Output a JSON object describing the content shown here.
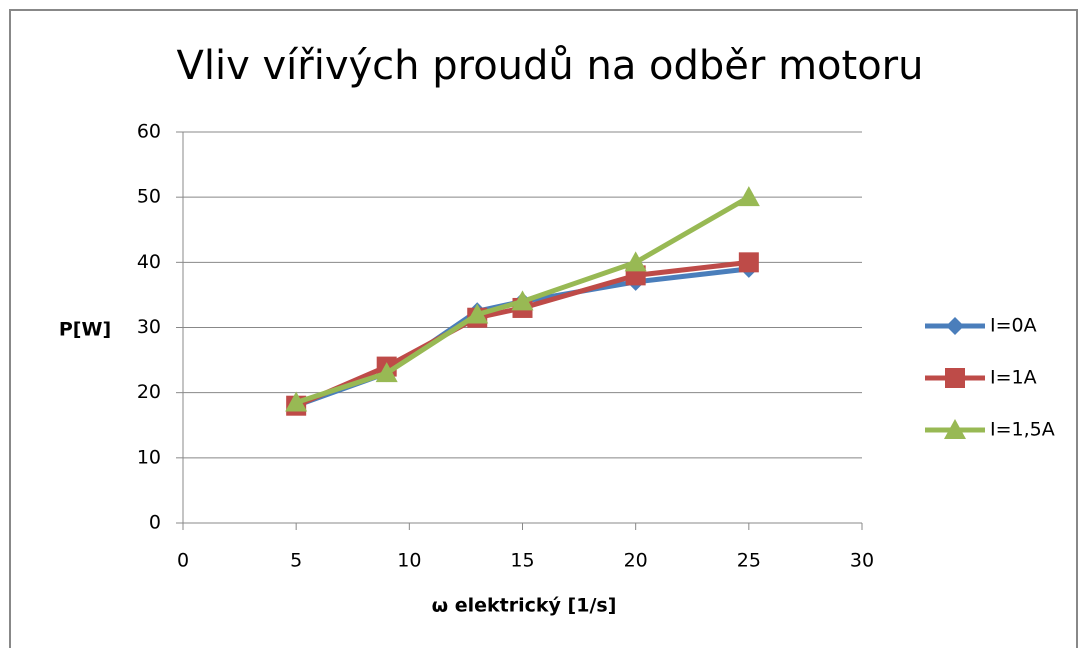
{
  "chart_data": {
    "type": "line",
    "title": "Vliv vířivých proudů na odběr motoru",
    "xlabel": "ω elektrický [1/s]",
    "ylabel": "P[W]",
    "x": [
      5,
      9,
      13,
      15,
      20,
      25
    ],
    "series": [
      {
        "name": "I=0A",
        "color": "#4a7ebb",
        "marker": "diamond",
        "values": [
          18,
          23,
          32.5,
          34,
          37,
          39
        ]
      },
      {
        "name": "I=1A",
        "color": "#be4b48",
        "marker": "square",
        "values": [
          18,
          24,
          31.5,
          33,
          38,
          40
        ]
      },
      {
        "name": "I=1,5A",
        "color": "#98b954",
        "marker": "triangle",
        "values": [
          18.5,
          23,
          32,
          34,
          40,
          50
        ]
      }
    ],
    "xlim": [
      0,
      30
    ],
    "xticks": [
      0,
      5,
      10,
      15,
      20,
      25,
      30
    ],
    "ylim": [
      0,
      60
    ],
    "yticks": [
      0,
      10,
      20,
      30,
      40,
      50,
      60
    ],
    "grid": true,
    "legend": "right"
  }
}
